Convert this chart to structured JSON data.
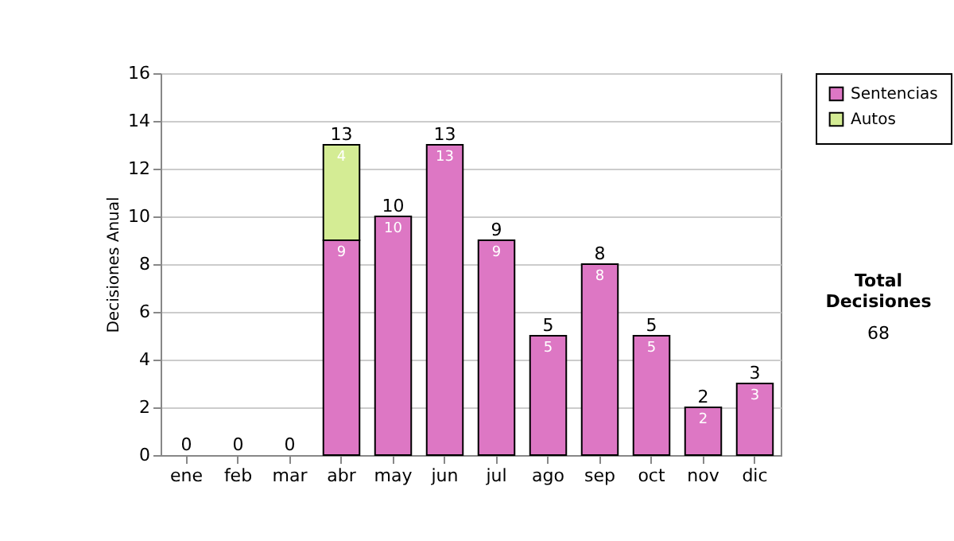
{
  "chart_data": {
    "type": "bar",
    "stacked": true,
    "ylabel": "Decisiones Anual",
    "categories": [
      "ene",
      "feb",
      "mar",
      "abr",
      "may",
      "jun",
      "jul",
      "ago",
      "sep",
      "oct",
      "nov",
      "dic"
    ],
    "series": [
      {
        "name": "Sentencias",
        "color": "#dd77c4",
        "values": [
          0,
          0,
          0,
          9,
          10,
          13,
          9,
          5,
          8,
          5,
          2,
          3
        ],
        "value_labels": [
          null,
          null,
          null,
          "9",
          "10",
          "13",
          "9",
          "5",
          "8",
          "5",
          "2",
          "3"
        ]
      },
      {
        "name": "Autos",
        "color": "#d4ec94",
        "values": [
          null,
          null,
          null,
          4,
          null,
          null,
          null,
          null,
          null,
          null,
          null,
          null
        ],
        "value_labels": [
          null,
          null,
          null,
          "4",
          null,
          null,
          null,
          null,
          null,
          null,
          null,
          null
        ]
      }
    ],
    "totals": [
      "0",
      "0",
      "0",
      "13",
      "10",
      "13",
      "9",
      "5",
      "8",
      "5",
      "2",
      "3"
    ],
    "ylim": [
      0,
      16
    ],
    "yticks": [
      0,
      2,
      4,
      6,
      8,
      10,
      12,
      14,
      16
    ],
    "grid": "y",
    "legend": "right",
    "annotations": [
      "Total Decisiones",
      "68"
    ]
  }
}
